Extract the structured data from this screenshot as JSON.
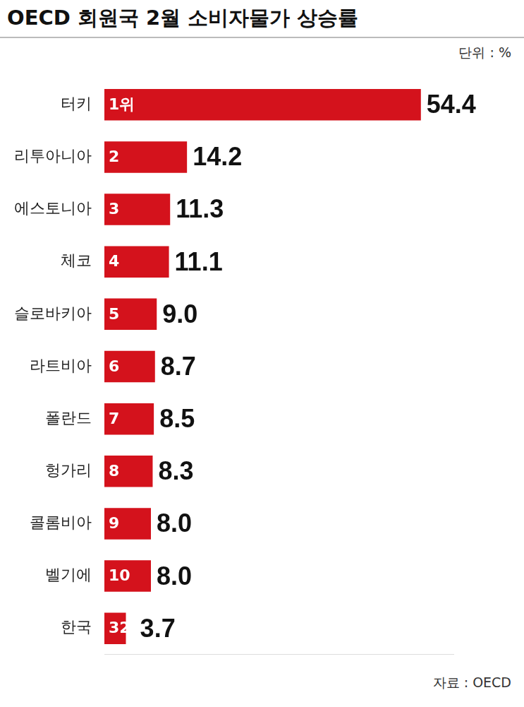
{
  "chart_data": {
    "type": "bar",
    "orientation": "horizontal",
    "title": "OECD 회원국 2월 소비자물가 상승률",
    "unit": "단위 : %",
    "source": "자료 : OECD",
    "categories": [
      "터키",
      "리투아니아",
      "에스토니아",
      "체코",
      "슬로바키아",
      "라트비아",
      "폴란드",
      "헝가리",
      "콜롬비아",
      "벨기에",
      "한국"
    ],
    "values": [
      54.4,
      14.2,
      11.3,
      11.1,
      9.0,
      8.7,
      8.5,
      8.3,
      8.0,
      8.0,
      3.7
    ],
    "value_labels": [
      "54.4",
      "14.2",
      "11.3",
      "11.1",
      "9.0",
      "8.7",
      "8.5",
      "8.3",
      "8.0",
      "8.0",
      "3.7"
    ],
    "ranks": [
      "1위",
      "2",
      "3",
      "4",
      "5",
      "6",
      "7",
      "8",
      "9",
      "10",
      "32"
    ],
    "color": "#d4121c",
    "xlim": [
      0,
      60
    ],
    "grid": false,
    "data_labels": true,
    "tick_labels": "y"
  }
}
